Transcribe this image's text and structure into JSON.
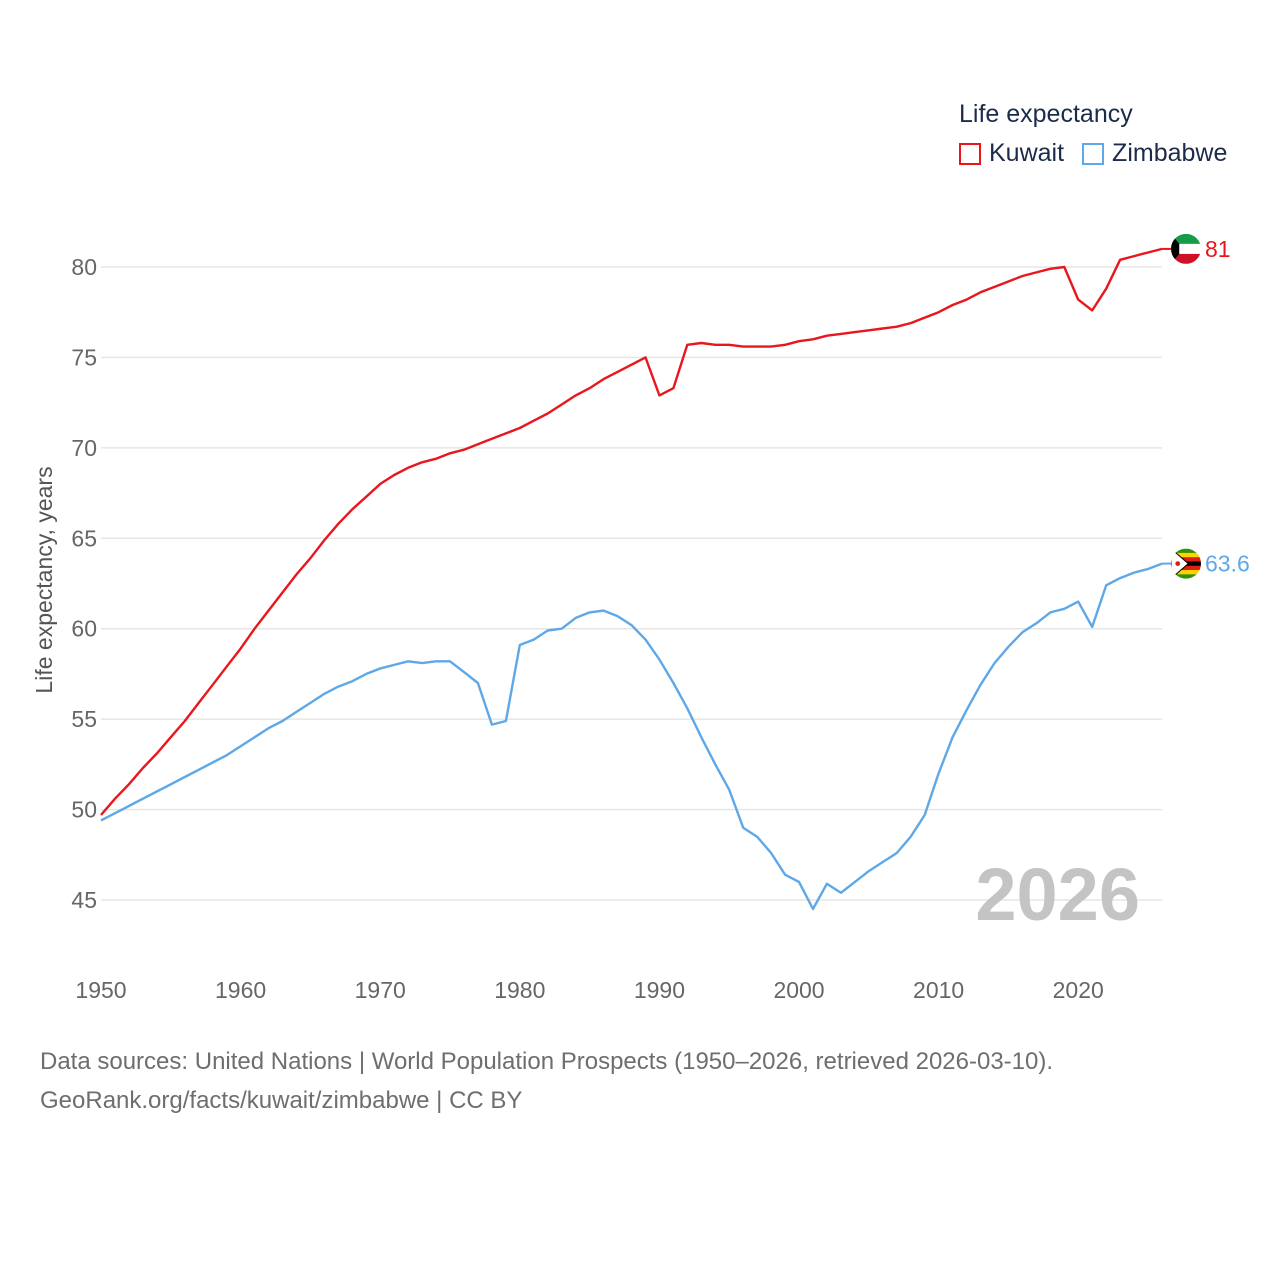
{
  "legend": {
    "title": "Life expectancy",
    "items": [
      {
        "label": "Kuwait",
        "color": "#e8171d"
      },
      {
        "label": "Zimbabwe",
        "color": "#5ea8e8"
      }
    ]
  },
  "year_display": "2026",
  "source": {
    "line1": "Data sources: United Nations | World Population Prospects (1950–2026, retrieved 2026-03-10).",
    "line2": "GeoRank.org/facts/kuwait/zimbabwe | CC BY"
  },
  "chart_data": {
    "type": "line",
    "title": "Life expectancy",
    "xlabel": "",
    "ylabel": "Life expectancy, years",
    "xlim": [
      1950,
      2026
    ],
    "ylim": [
      43,
      83
    ],
    "xticks": [
      1950,
      1960,
      1970,
      1980,
      1990,
      2000,
      2010,
      2020
    ],
    "yticks": [
      45,
      50,
      55,
      60,
      65,
      70,
      75,
      80
    ],
    "grid": true,
    "x": [
      1950,
      1951,
      1952,
      1953,
      1954,
      1955,
      1956,
      1957,
      1958,
      1959,
      1960,
      1961,
      1962,
      1963,
      1964,
      1965,
      1966,
      1967,
      1968,
      1969,
      1970,
      1971,
      1972,
      1973,
      1974,
      1975,
      1976,
      1977,
      1978,
      1979,
      1980,
      1981,
      1982,
      1983,
      1984,
      1985,
      1986,
      1987,
      1988,
      1989,
      1990,
      1991,
      1992,
      1993,
      1994,
      1995,
      1996,
      1997,
      1998,
      1999,
      2000,
      2001,
      2002,
      2003,
      2004,
      2005,
      2006,
      2007,
      2008,
      2009,
      2010,
      2011,
      2012,
      2013,
      2014,
      2015,
      2016,
      2017,
      2018,
      2019,
      2020,
      2021,
      2022,
      2023,
      2024,
      2025,
      2026
    ],
    "series": [
      {
        "name": "Kuwait",
        "color": "#e8171d",
        "end_label": "81",
        "flag": "kuwait-flag",
        "values": [
          49.7,
          50.6,
          51.4,
          52.3,
          53.1,
          54.0,
          54.9,
          55.9,
          56.9,
          57.9,
          58.9,
          60.0,
          61.0,
          62.0,
          63.0,
          63.9,
          64.9,
          65.8,
          66.6,
          67.3,
          68.0,
          68.5,
          68.9,
          69.2,
          69.4,
          69.7,
          69.9,
          70.2,
          70.5,
          70.8,
          71.1,
          71.5,
          71.9,
          72.4,
          72.9,
          73.3,
          73.8,
          74.2,
          74.6,
          75.0,
          72.9,
          73.3,
          75.7,
          75.8,
          75.7,
          75.7,
          75.6,
          75.6,
          75.6,
          75.7,
          75.9,
          76.0,
          76.2,
          76.3,
          76.4,
          76.5,
          76.6,
          76.7,
          76.9,
          77.2,
          77.5,
          77.9,
          78.2,
          78.6,
          78.9,
          79.2,
          79.5,
          79.7,
          79.9,
          80.0,
          78.2,
          77.6,
          78.8,
          80.4,
          80.6,
          80.8,
          81.0
        ]
      },
      {
        "name": "Zimbabwe",
        "color": "#5ea8e8",
        "end_label": "63.6",
        "flag": "zimbabwe-flag",
        "values": [
          49.4,
          49.8,
          50.2,
          50.6,
          51.0,
          51.4,
          51.8,
          52.2,
          52.6,
          53.0,
          53.5,
          54.0,
          54.5,
          54.9,
          55.4,
          55.9,
          56.4,
          56.8,
          57.1,
          57.5,
          57.8,
          58.0,
          58.2,
          58.1,
          58.2,
          58.2,
          57.6,
          57.0,
          54.7,
          54.9,
          59.1,
          59.4,
          59.9,
          60.0,
          60.6,
          60.9,
          61.0,
          60.7,
          60.2,
          59.4,
          58.3,
          57.0,
          55.6,
          54.0,
          52.5,
          51.1,
          49.0,
          48.5,
          47.6,
          46.4,
          46.0,
          44.5,
          45.9,
          45.4,
          46.0,
          46.6,
          47.1,
          47.6,
          48.5,
          49.7,
          52.0,
          54.0,
          55.5,
          56.9,
          58.1,
          59.0,
          59.8,
          60.3,
          60.9,
          61.1,
          61.5,
          60.1,
          62.4,
          62.8,
          63.1,
          63.3,
          63.6
        ]
      }
    ]
  }
}
